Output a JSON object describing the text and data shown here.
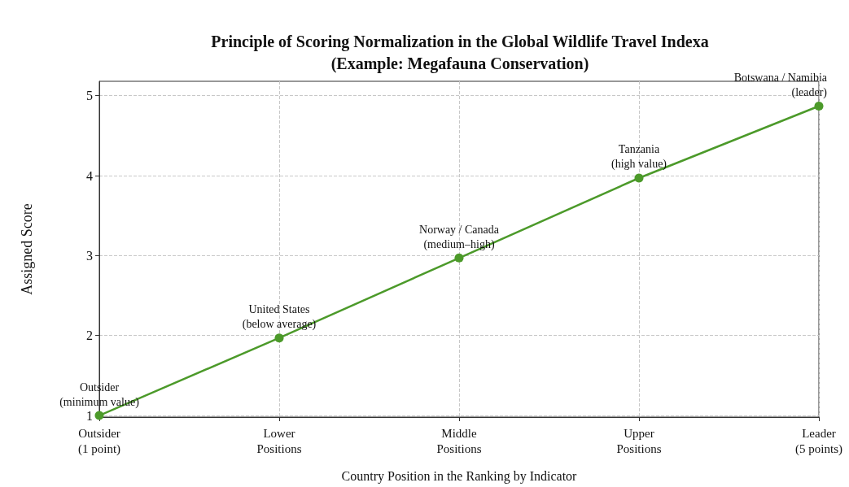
{
  "chart_data": {
    "type": "line",
    "title": "Principle of Scoring Normalization in the Global Wildlife Travel Indexa\n(Example: Megafauna Conservation)",
    "xlabel": "Country Position in the Ranking by Indicator",
    "ylabel": "Assigned Score",
    "categories": [
      "Outsider\n(1 point)",
      "Lower\nPositions",
      "Middle\nPositions",
      "Upper\nPositions",
      "Leader\n(5 points)"
    ],
    "series": [
      {
        "color": "#4c9a2a",
        "values": [
          1.0,
          1.97,
          2.97,
          3.97,
          4.87
        ]
      }
    ],
    "ylim": [
      0.98,
      5.18
    ],
    "yticks": [
      1,
      2,
      3,
      4,
      5
    ],
    "grid": true,
    "marker": "circle",
    "line_style": "solid",
    "annotations": [
      {
        "text": "Outsider\n(minimum value)",
        "x": "Outsider\n(1 point)",
        "y": 1.0
      },
      {
        "text": "United States\n(below average)",
        "x": "Lower\nPositions",
        "y": 1.97
      },
      {
        "text": "Norway / Canada\n(medium–high)",
        "x": "Middle\nPositions",
        "y": 2.97
      },
      {
        "text": "Tanzania\n(high value)",
        "x": "Upper\nPositions",
        "y": 3.97
      },
      {
        "text": "Botswana / Namibia\n(leader)",
        "x": "Leader\n(5 points)",
        "y": 4.87
      }
    ]
  }
}
